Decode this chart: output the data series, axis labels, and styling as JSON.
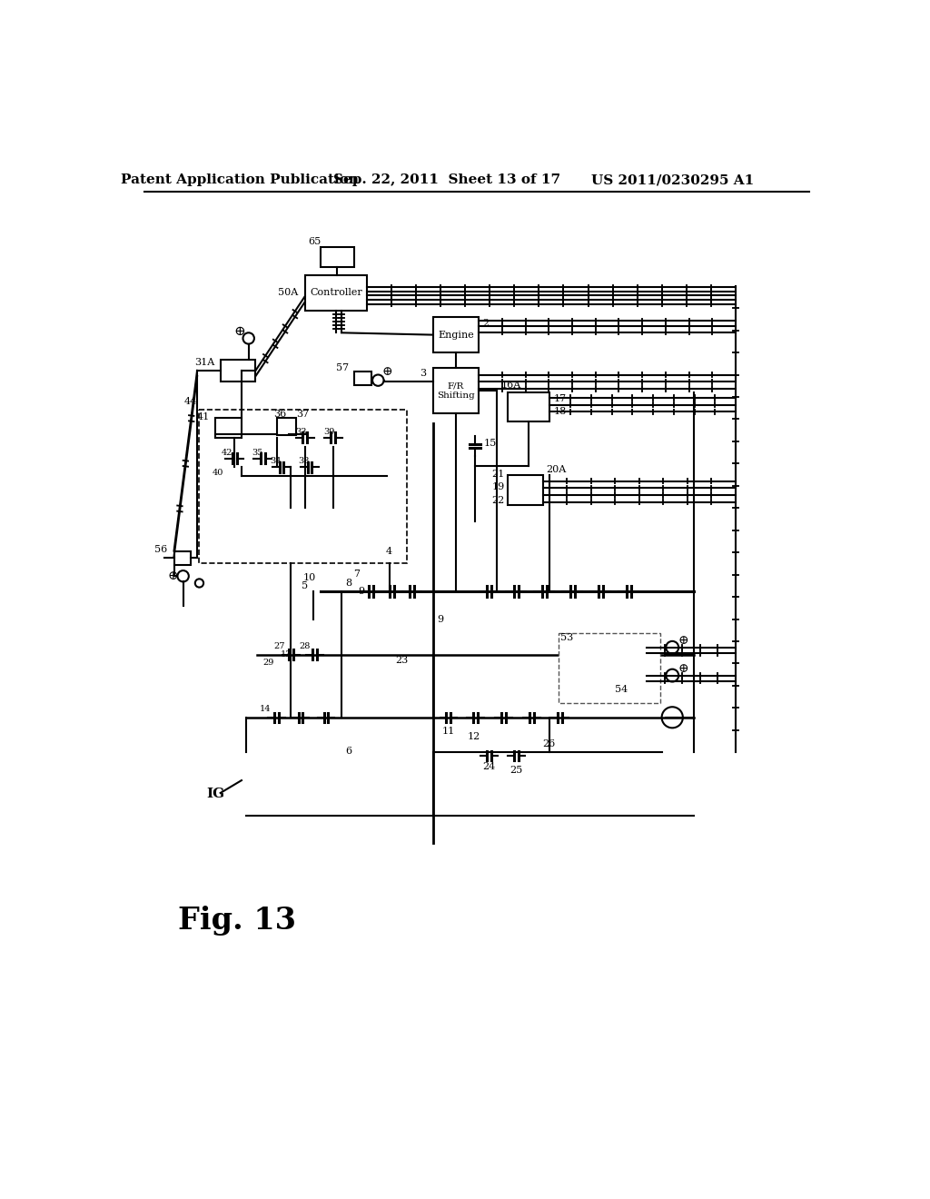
{
  "title_left": "Patent Application Publication",
  "title_center": "Sep. 22, 2011  Sheet 13 of 17",
  "title_right": "US 2011/0230295 A1",
  "fig_label": "Fig. 13",
  "bg_color": "#ffffff",
  "line_color": "#000000"
}
